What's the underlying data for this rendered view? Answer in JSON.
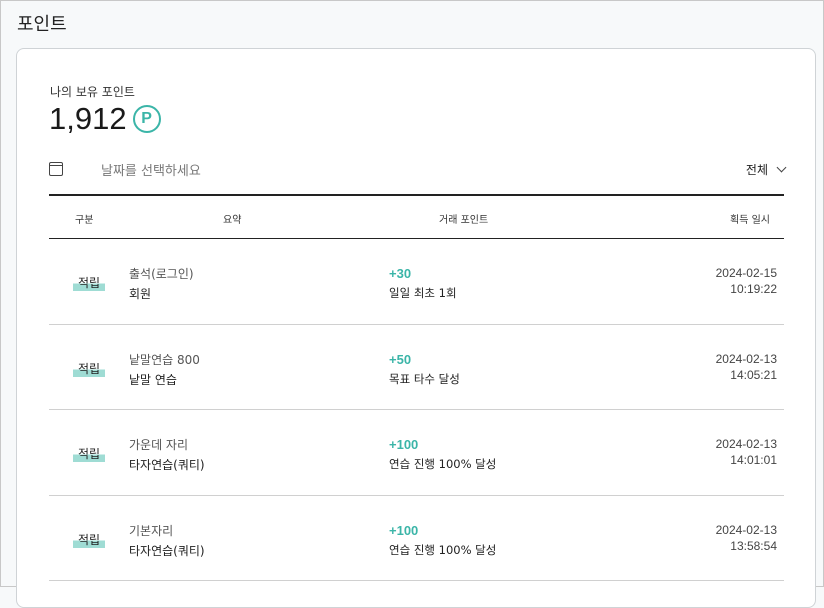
{
  "page": {
    "title": "포인트"
  },
  "summary": {
    "label": "나의 보유 포인트",
    "points": "1,912",
    "point_symbol": "P"
  },
  "filter": {
    "date_placeholder": "날짜를 선택하세요",
    "type_selected": "전체"
  },
  "table": {
    "headers": [
      "구분",
      "요약",
      "거래 포인트",
      "획득 일시"
    ],
    "rows": [
      {
        "type": "적립",
        "summary_title": "출석(로그인)",
        "summary_sub": "회원",
        "points": "+30",
        "points_desc": "일일 최초 1회",
        "date": "2024-02-15",
        "time": "10:19:22"
      },
      {
        "type": "적립",
        "summary_title": "낱말연습 800",
        "summary_sub": "낱말 연습",
        "points": "+50",
        "points_desc": "목표 타수 달성",
        "date": "2024-02-13",
        "time": "14:05:21"
      },
      {
        "type": "적립",
        "summary_title": "가운데 자리",
        "summary_sub": "타자연습(쿼티)",
        "points": "+100",
        "points_desc": "연습 진행 100% 달성",
        "date": "2024-02-13",
        "time": "14:01:01"
      },
      {
        "type": "적립",
        "summary_title": "기본자리",
        "summary_sub": "타자연습(쿼티)",
        "points": "+100",
        "points_desc": "연습 진행 100% 달성",
        "date": "2024-02-13",
        "time": "13:58:54"
      }
    ]
  },
  "colors": {
    "accent": "#3bb5a8",
    "badge_highlight": "#9fdcd4"
  }
}
